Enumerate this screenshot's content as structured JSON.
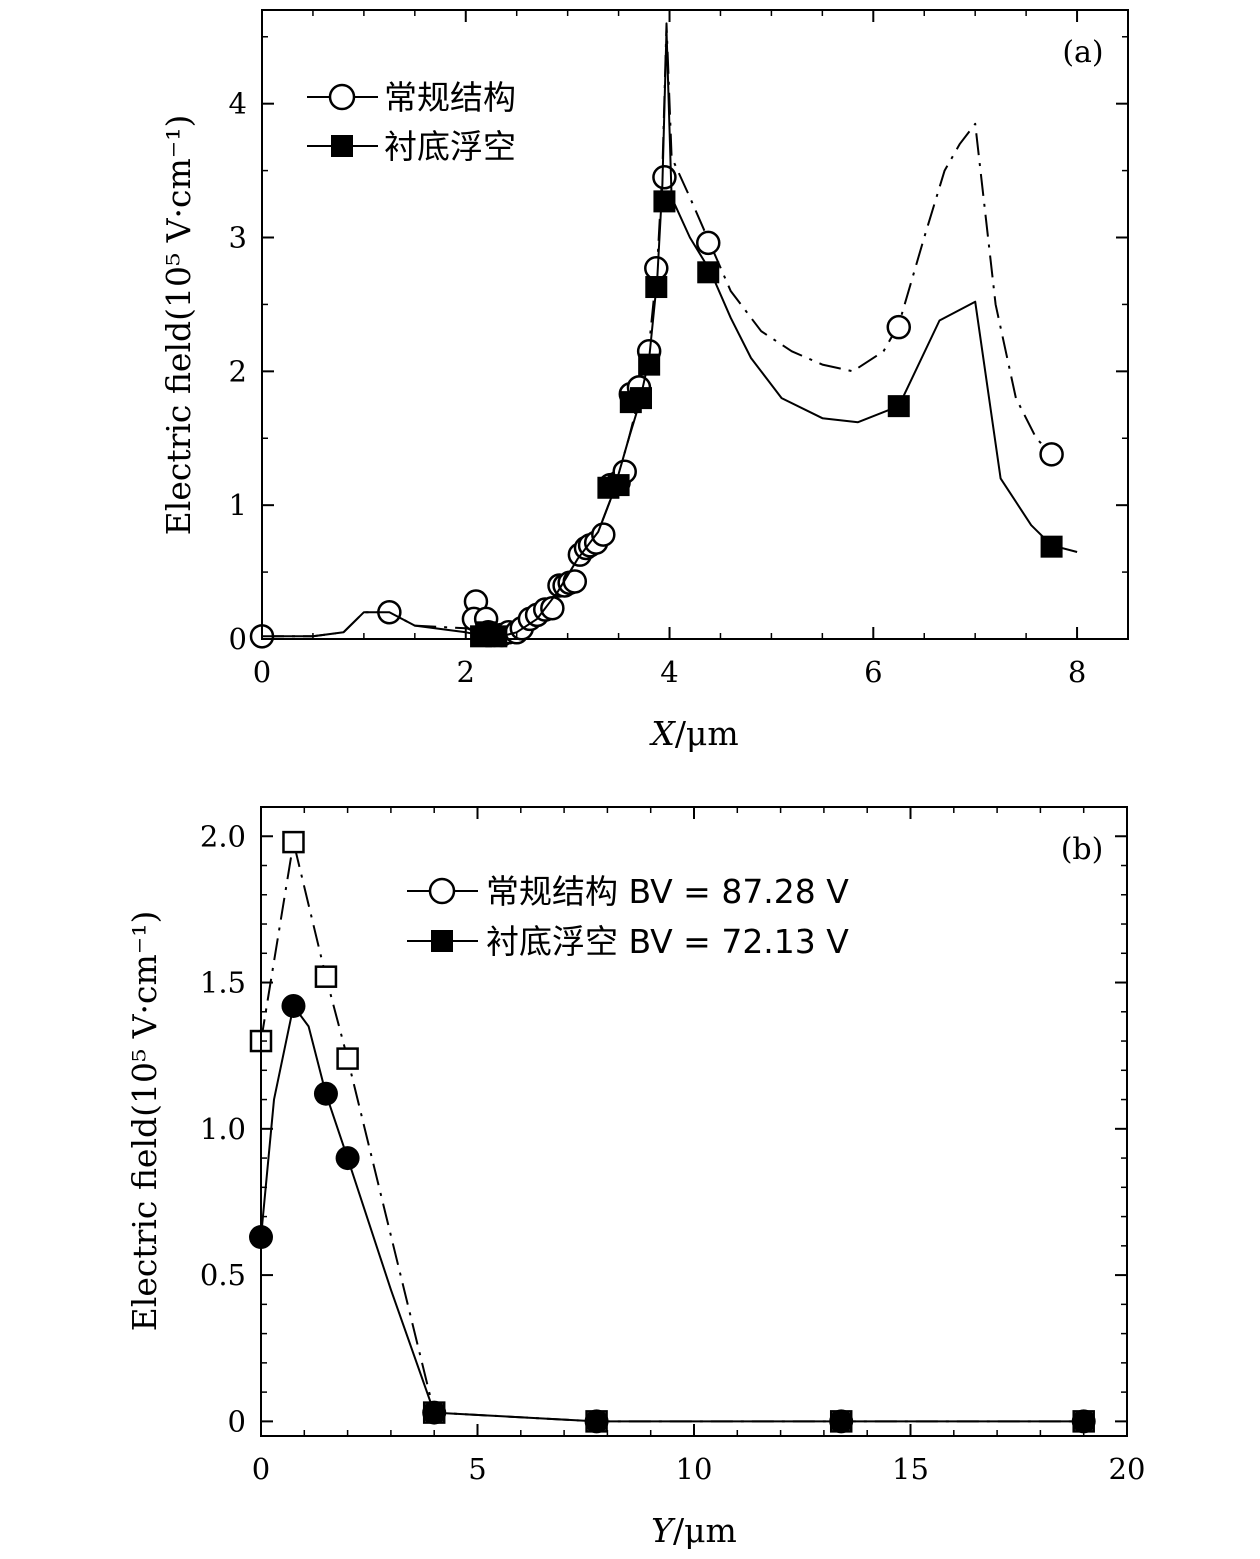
{
  "chart_data": [
    {
      "type": "line",
      "panel_label": "(a)",
      "xlabel_var": "X",
      "xlabel_unit": "/μm",
      "ylabel": "Electric field(10⁵ V·cm⁻¹)",
      "xlim": [
        0,
        8.5
      ],
      "ylim": [
        0,
        4.7
      ],
      "xticks": [
        0,
        2,
        4,
        6,
        8
      ],
      "yticks": [
        0,
        1,
        2,
        3,
        4
      ],
      "xtick_labels": [
        "0",
        "2",
        "4",
        "6",
        "8"
      ],
      "ytick_labels": [
        "0",
        "1",
        "2",
        "3",
        "4"
      ],
      "series": [
        {
          "name": "常规结构",
          "line_style": "dash-dot",
          "marker": "open-circle",
          "line": [
            [
              0,
              0.02
            ],
            [
              0.5,
              0.02
            ],
            [
              0.8,
              0.05
            ],
            [
              1.0,
              0.2
            ],
            [
              1.25,
              0.2
            ],
            [
              1.5,
              0.1
            ],
            [
              2.0,
              0.08
            ],
            [
              2.2,
              0.05
            ],
            [
              2.35,
              0.03
            ],
            [
              2.5,
              0.05
            ],
            [
              2.7,
              0.15
            ],
            [
              2.9,
              0.35
            ],
            [
              3.1,
              0.6
            ],
            [
              3.3,
              0.8
            ],
            [
              3.45,
              1.1
            ],
            [
              3.6,
              1.5
            ],
            [
              3.7,
              1.8
            ],
            [
              3.8,
              2.2
            ],
            [
              3.88,
              2.8
            ],
            [
              3.93,
              3.5
            ],
            [
              3.97,
              4.6
            ],
            [
              4.02,
              3.6
            ],
            [
              4.2,
              3.3
            ],
            [
              4.4,
              2.95
            ],
            [
              4.6,
              2.6
            ],
            [
              4.9,
              2.3
            ],
            [
              5.2,
              2.15
            ],
            [
              5.5,
              2.05
            ],
            [
              5.8,
              2.0
            ],
            [
              6.1,
              2.15
            ],
            [
              6.25,
              2.35
            ],
            [
              6.5,
              3.0
            ],
            [
              6.7,
              3.5
            ],
            [
              6.85,
              3.7
            ],
            [
              7.0,
              3.85
            ],
            [
              7.2,
              2.5
            ],
            [
              7.4,
              1.8
            ],
            [
              7.6,
              1.5
            ],
            [
              7.75,
              1.38
            ]
          ],
          "points": [
            [
              0,
              0.02
            ],
            [
              1.25,
              0.2
            ],
            [
              2.1,
              0.28
            ],
            [
              2.08,
              0.15
            ],
            [
              2.2,
              0.15
            ],
            [
              2.22,
              0.05
            ],
            [
              2.28,
              0.03
            ],
            [
              2.35,
              0.03
            ],
            [
              2.42,
              0.05
            ],
            [
              2.5,
              0.05
            ],
            [
              2.55,
              0.08
            ],
            [
              2.63,
              0.15
            ],
            [
              2.7,
              0.18
            ],
            [
              2.78,
              0.22
            ],
            [
              2.85,
              0.23
            ],
            [
              2.92,
              0.4
            ],
            [
              2.97,
              0.4
            ],
            [
              3.02,
              0.42
            ],
            [
              3.07,
              0.43
            ],
            [
              3.12,
              0.63
            ],
            [
              3.18,
              0.68
            ],
            [
              3.22,
              0.7
            ],
            [
              3.28,
              0.72
            ],
            [
              3.35,
              0.78
            ],
            [
              3.42,
              1.15
            ],
            [
              3.5,
              1.17
            ],
            [
              3.56,
              1.25
            ],
            [
              3.62,
              1.83
            ],
            [
              3.7,
              1.88
            ],
            [
              3.8,
              2.15
            ],
            [
              3.87,
              2.77
            ],
            [
              3.95,
              3.45
            ],
            [
              4.38,
              2.96
            ],
            [
              6.25,
              2.33
            ],
            [
              7.75,
              1.38
            ]
          ]
        },
        {
          "name": "衬底浮空",
          "line_style": "solid",
          "marker": "filled-square",
          "line": [
            [
              0,
              0.02
            ],
            [
              0.5,
              0.02
            ],
            [
              0.8,
              0.05
            ],
            [
              1.0,
              0.2
            ],
            [
              1.25,
              0.2
            ],
            [
              1.5,
              0.1
            ],
            [
              2.0,
              0.05
            ],
            [
              2.2,
              0.02
            ],
            [
              2.35,
              0.02
            ],
            [
              2.5,
              0.05
            ],
            [
              2.7,
              0.15
            ],
            [
              2.9,
              0.35
            ],
            [
              3.1,
              0.6
            ],
            [
              3.3,
              0.8
            ],
            [
              3.45,
              1.1
            ],
            [
              3.6,
              1.5
            ],
            [
              3.7,
              1.75
            ],
            [
              3.8,
              2.1
            ],
            [
              3.88,
              2.7
            ],
            [
              3.93,
              3.4
            ],
            [
              3.97,
              4.55
            ],
            [
              4.02,
              3.3
            ],
            [
              4.2,
              3.0
            ],
            [
              4.4,
              2.75
            ],
            [
              4.6,
              2.4
            ],
            [
              4.8,
              2.1
            ],
            [
              5.1,
              1.8
            ],
            [
              5.5,
              1.65
            ],
            [
              5.85,
              1.62
            ],
            [
              6.25,
              1.74
            ],
            [
              6.65,
              2.38
            ],
            [
              7.0,
              2.52
            ],
            [
              7.25,
              1.2
            ],
            [
              7.55,
              0.85
            ],
            [
              7.75,
              0.7
            ],
            [
              8.0,
              0.65
            ]
          ],
          "points": [
            [
              2.15,
              0.02
            ],
            [
              2.2,
              0.05
            ],
            [
              2.3,
              0.02
            ],
            [
              3.4,
              1.13
            ],
            [
              3.5,
              1.15
            ],
            [
              3.62,
              1.77
            ],
            [
              3.72,
              1.8
            ],
            [
              3.8,
              2.05
            ],
            [
              3.87,
              2.63
            ],
            [
              3.95,
              3.27
            ],
            [
              4.38,
              2.74
            ],
            [
              6.25,
              1.74
            ],
            [
              7.75,
              0.69
            ]
          ]
        }
      ]
    },
    {
      "type": "line",
      "panel_label": "(b)",
      "xlabel_var": "Y",
      "xlabel_unit": "/μm",
      "ylabel": "Electric field(10⁵ V·cm⁻¹)",
      "xlim": [
        0,
        20
      ],
      "ylim": [
        -0.05,
        2.1
      ],
      "xticks": [
        0,
        5,
        10,
        15,
        20
      ],
      "yticks": [
        0,
        0.5,
        1.0,
        1.5,
        2.0
      ],
      "xtick_labels": [
        "0",
        "5",
        "10",
        "15",
        "20"
      ],
      "ytick_labels": [
        "0",
        "0.5",
        "1.0",
        "1.5",
        "2.0"
      ],
      "series": [
        {
          "name": "常规结构 BV = 87.28 V",
          "line_style": "dash-dot",
          "marker": "open-square",
          "legend_marker": "open-circle",
          "line": [
            [
              0,
              1.3
            ],
            [
              0.75,
              1.98
            ],
            [
              1.5,
              1.52
            ],
            [
              2.0,
              1.24
            ],
            [
              4.0,
              0.03
            ],
            [
              7.75,
              0.0
            ],
            [
              13.4,
              0.0
            ],
            [
              19.0,
              0.0
            ]
          ],
          "points": [
            [
              0,
              1.3
            ],
            [
              0.75,
              1.98
            ],
            [
              1.5,
              1.52
            ],
            [
              2.0,
              1.24
            ],
            [
              4.0,
              0.03
            ],
            [
              7.75,
              0.0
            ],
            [
              13.4,
              0.0
            ],
            [
              19.0,
              0.0
            ]
          ]
        },
        {
          "name": "衬底浮空 BV = 72.13 V",
          "line_style": "solid",
          "marker": "filled-circle",
          "legend_marker": "filled-square",
          "line": [
            [
              0,
              0.63
            ],
            [
              0.3,
              1.1
            ],
            [
              0.75,
              1.42
            ],
            [
              1.1,
              1.35
            ],
            [
              1.5,
              1.12
            ],
            [
              2.0,
              0.9
            ],
            [
              3.0,
              0.45
            ],
            [
              4.0,
              0.03
            ],
            [
              7.75,
              0.0
            ],
            [
              13.4,
              0.0
            ],
            [
              19.0,
              0.0
            ]
          ],
          "points": [
            [
              0,
              0.63
            ],
            [
              0.75,
              1.42
            ],
            [
              1.5,
              1.12
            ],
            [
              2.0,
              0.9
            ],
            [
              4.0,
              0.03
            ],
            [
              7.75,
              0.0
            ],
            [
              13.4,
              0.0
            ],
            [
              19.0,
              0.0
            ]
          ]
        }
      ]
    }
  ]
}
